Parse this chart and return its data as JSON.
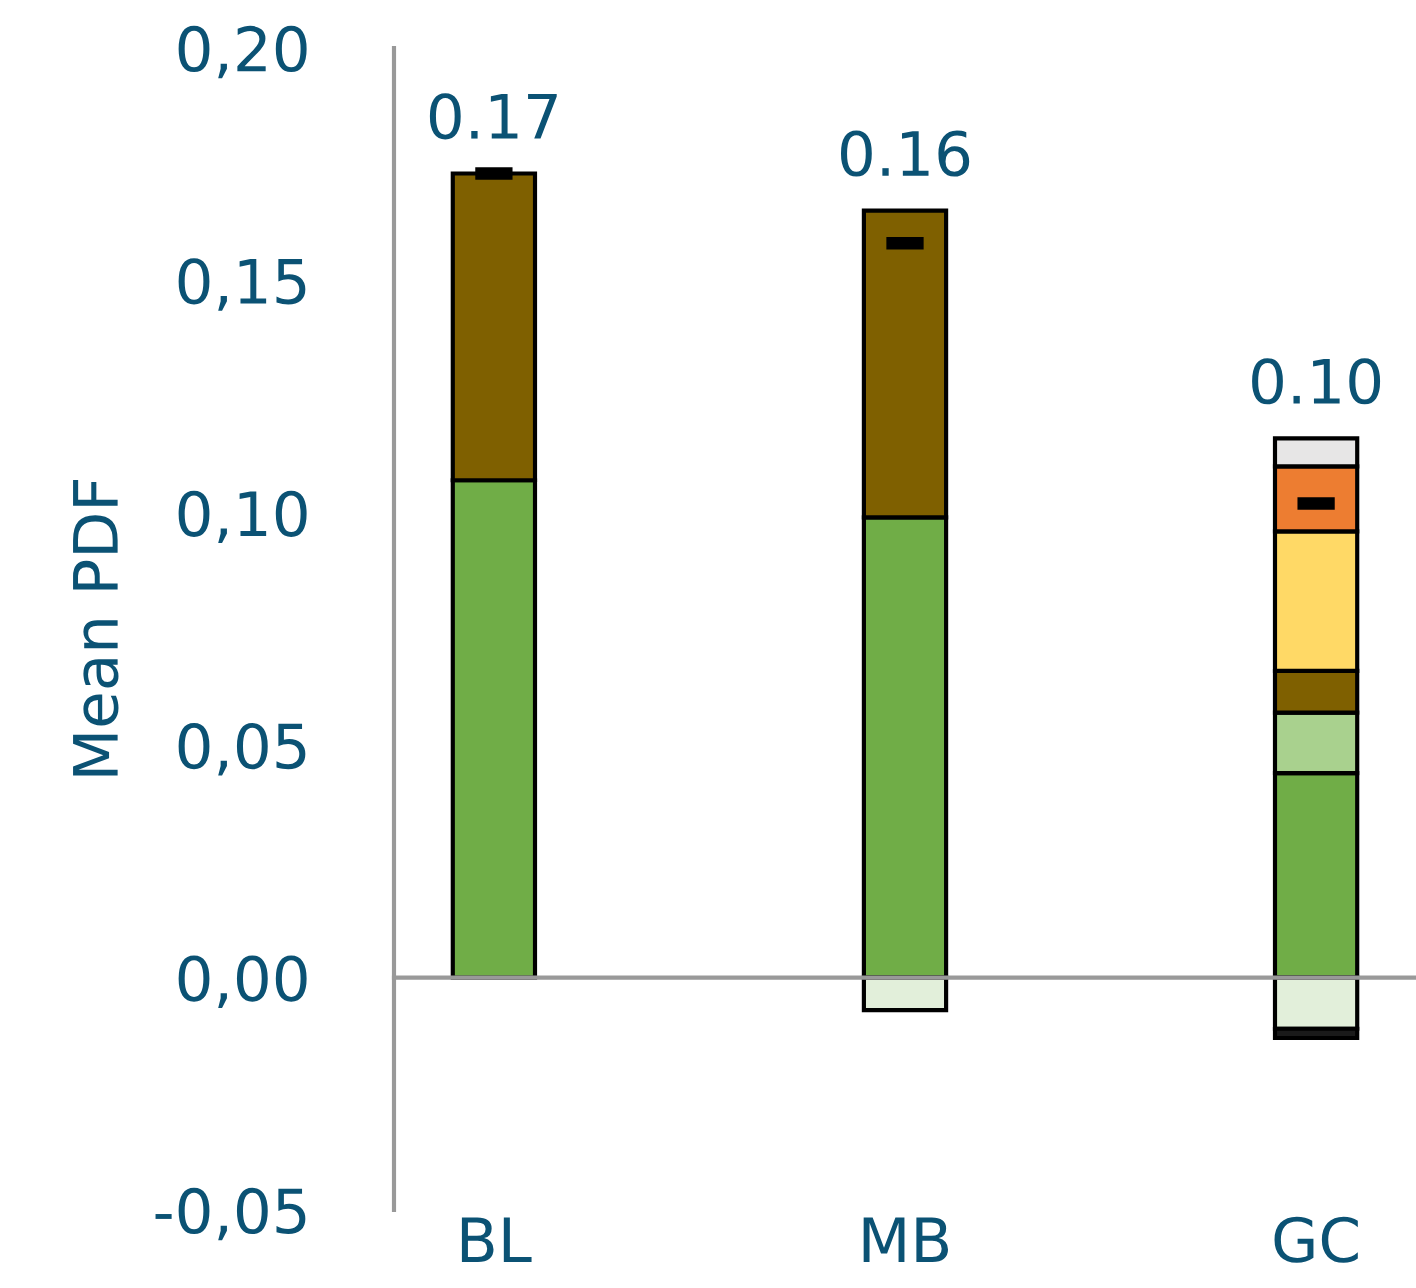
{
  "chart_data": {
    "type": "bar",
    "stacked": true,
    "ylabel": "Mean PDF",
    "categories": [
      "BL",
      "MB",
      "GC"
    ],
    "series": [
      {
        "color": "#70ad47",
        "values": [
          0.107,
          0.099,
          0.044
        ]
      },
      {
        "color": "#a9d18e",
        "values": [
          null,
          null,
          0.013
        ]
      },
      {
        "color": "#7f6000",
        "values": [
          0.066,
          0.066,
          0.009
        ]
      },
      {
        "color": "#ffd966",
        "values": [
          null,
          null,
          0.03
        ]
      },
      {
        "color": "#ed7d31",
        "values": [
          null,
          null,
          0.014
        ]
      },
      {
        "color": "#e7e6e6",
        "values": [
          null,
          null,
          0.006
        ]
      },
      {
        "color": "#e2efda",
        "values": [
          null,
          -0.007,
          -0.011
        ]
      },
      {
        "color": "#1a1a1a",
        "values": [
          null,
          null,
          -0.002
        ]
      },
      {
        "type": "scatter",
        "color": "#000000",
        "values": [
          0.173,
          0.158,
          0.102
        ]
      }
    ],
    "totals": [
      "0.17",
      "0.16",
      "0.10"
    ],
    "ylim": [
      -0.05,
      0.2
    ],
    "yticks": [
      {
        "value": -0.05,
        "label": "-0,05"
      },
      {
        "value": 0,
        "label": "0,00"
      },
      {
        "value": 0.05,
        "label": "0,05"
      },
      {
        "value": 0.1,
        "label": "0,10"
      },
      {
        "value": 0.15,
        "label": "0,15"
      },
      {
        "value": 0.2,
        "label": "0,20"
      }
    ],
    "legend": false
  }
}
